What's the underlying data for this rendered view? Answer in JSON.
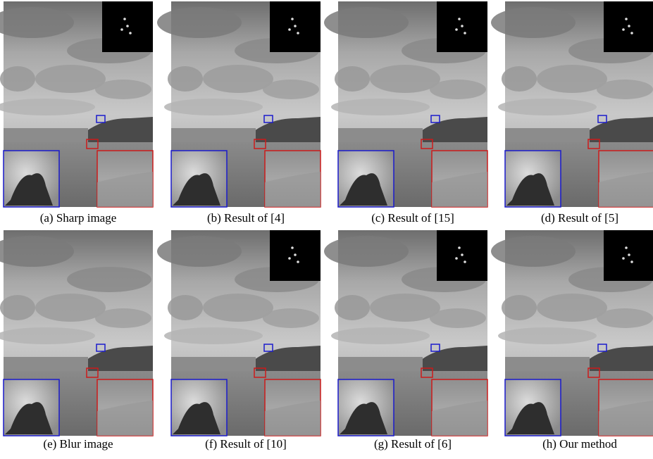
{
  "panels": [
    {
      "caption": "(a) Sharp image"
    },
    {
      "caption": "(b) Result of [4]"
    },
    {
      "caption": "(c) Result of [15]"
    },
    {
      "caption": "(d) Result of [5]"
    },
    {
      "caption": "(e) Blur image"
    },
    {
      "caption": "(f) Result of [10]"
    },
    {
      "caption": "(g) Result of [6]"
    },
    {
      "caption": "(h) Our method"
    }
  ]
}
